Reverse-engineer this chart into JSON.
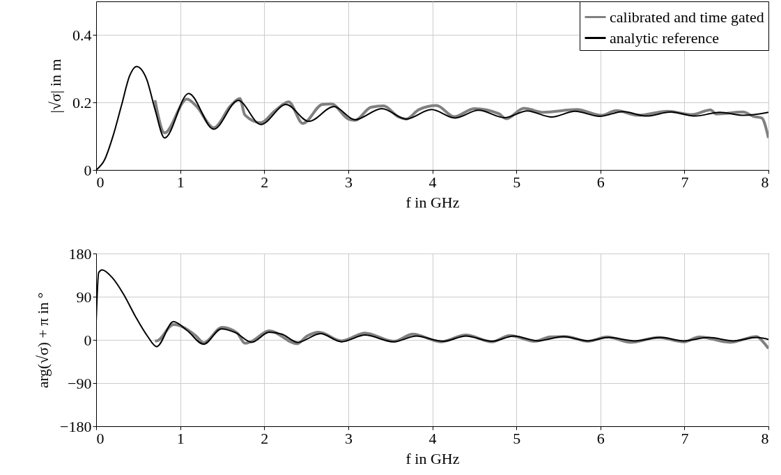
{
  "chart_data": [
    {
      "type": "line",
      "xlabel": "f in GHz",
      "ylabel": "|√σ| in m",
      "xlim": [
        0,
        8
      ],
      "xticks": [
        0,
        1,
        2,
        3,
        4,
        5,
        6,
        7,
        8
      ],
      "ylim": [
        0,
        0.5
      ],
      "yticks": [
        0,
        0.2,
        0.4
      ],
      "grid": true,
      "legend": "top right",
      "line_style": "solid",
      "marker": "none",
      "series": [
        {
          "name": "calibrated and time gated",
          "color": "#808080",
          "x": [
            0.7,
            0.815,
            1.08,
            1.19,
            1.4,
            1.6,
            1.71,
            1.77,
            1.96,
            2.13,
            2.29,
            2.46,
            2.69,
            2.8,
            3.0,
            3.08,
            3.27,
            3.42,
            3.6,
            3.69,
            3.84,
            4.05,
            4.26,
            4.5,
            4.79,
            4.88,
            5.09,
            5.32,
            5.72,
            6.01,
            6.19,
            6.44,
            6.8,
            7.09,
            7.31,
            7.38,
            7.7,
            7.82,
            7.92,
            8.0
          ],
          "values": [
            0.207,
            0.11,
            0.21,
            0.19,
            0.125,
            0.19,
            0.212,
            0.163,
            0.14,
            0.176,
            0.202,
            0.138,
            0.194,
            0.196,
            0.151,
            0.147,
            0.186,
            0.19,
            0.157,
            0.151,
            0.179,
            0.191,
            0.158,
            0.182,
            0.167,
            0.152,
            0.183,
            0.171,
            0.179,
            0.162,
            0.176,
            0.162,
            0.174,
            0.164,
            0.178,
            0.166,
            0.172,
            0.159,
            0.154,
            0.095
          ]
        },
        {
          "name": "analytic reference",
          "color": "#000000",
          "x": [
            0,
            0.1,
            0.2,
            0.3,
            0.4,
            0.48,
            0.6,
            0.7,
            0.815,
            1.1,
            1.4,
            1.69,
            1.96,
            2.26,
            2.53,
            2.83,
            3.08,
            3.4,
            3.69,
            3.99,
            4.27,
            4.55,
            4.86,
            5.13,
            5.42,
            5.7,
            5.99,
            6.27,
            6.55,
            6.84,
            7.13,
            7.42,
            7.71,
            8.0
          ],
          "values": [
            0,
            0.03,
            0.1,
            0.19,
            0.28,
            0.307,
            0.27,
            0.18,
            0.095,
            0.227,
            0.121,
            0.206,
            0.135,
            0.194,
            0.144,
            0.188,
            0.149,
            0.182,
            0.151,
            0.179,
            0.154,
            0.177,
            0.155,
            0.175,
            0.157,
            0.174,
            0.159,
            0.173,
            0.16,
            0.172,
            0.16,
            0.171,
            0.162,
            0.171
          ]
        }
      ]
    },
    {
      "type": "line",
      "xlabel": "f in GHz",
      "ylabel": "arg(√σ) + π in °",
      "xlim": [
        0,
        8
      ],
      "xticks": [
        0,
        1,
        2,
        3,
        4,
        5,
        6,
        7,
        8
      ],
      "ylim": [
        -180,
        180
      ],
      "yticks": [
        {
          "value": -180,
          "label": "−180"
        },
        {
          "value": -90,
          "label": "−90"
        },
        0,
        90,
        180
      ],
      "grid": true,
      "line_style": "solid",
      "marker": "none",
      "series": [
        {
          "color": "#808080",
          "x": [
            0.7,
            0.72,
            0.92,
            1.19,
            1.28,
            1.5,
            1.68,
            1.77,
            1.85,
            2.06,
            2.39,
            2.51,
            2.65,
            2.92,
            3.2,
            3.54,
            3.77,
            4.1,
            4.4,
            4.71,
            4.92,
            5.22,
            5.4,
            5.59,
            5.85,
            6.08,
            6.36,
            6.69,
            6.99,
            7.18,
            7.54,
            7.86,
            7.94,
            8.0
          ],
          "values": [
            -2,
            -2,
            32,
            8,
            -6,
            26,
            14,
            -7,
            -3,
            19,
            -8,
            8,
            16,
            -2,
            14,
            -3,
            12,
            -4,
            10,
            -4,
            9,
            -3,
            6,
            7,
            -3,
            6,
            -5,
            5,
            -4,
            6,
            -5,
            7,
            -5,
            -18
          ]
        },
        {
          "color": "#000000",
          "x": [
            0,
            0.03,
            0.07,
            0.19,
            0.33,
            0.47,
            0.61,
            0.72,
            0.92,
            1.08,
            1.28,
            1.49,
            1.66,
            1.85,
            2.06,
            2.21,
            2.4,
            2.67,
            2.92,
            3.2,
            3.54,
            3.81,
            4.13,
            4.4,
            4.71,
            4.97,
            5.26,
            5.56,
            5.85,
            6.1,
            6.41,
            6.72,
            6.99,
            7.29,
            7.58,
            7.86,
            8.0
          ],
          "values": [
            38,
            140,
            146,
            130,
            94,
            48,
            8,
            -14,
            38,
            20,
            -9,
            23,
            15,
            -5,
            16,
            12,
            -5,
            13,
            -4,
            10,
            -4,
            8,
            -3,
            8,
            -3,
            8,
            -2,
            7,
            -2,
            5,
            -2,
            5,
            -2,
            5,
            -2,
            5,
            1
          ]
        }
      ]
    }
  ]
}
